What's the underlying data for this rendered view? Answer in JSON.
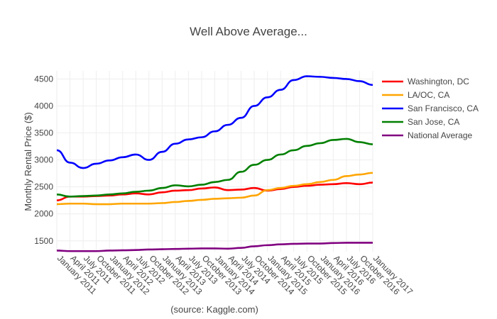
{
  "chart_data": {
    "type": "line",
    "title": "Well Above Average...",
    "ylabel": "Monthly Rental Price ($)",
    "xlabel": "(source: Kaggle.com)",
    "ylim": [
      1300,
      4650
    ],
    "y_ticks": [
      1500,
      2000,
      2500,
      3000,
      3500,
      4000,
      4500
    ],
    "x_tick_labels": [
      "January 2011",
      "April 2011",
      "July 2011",
      "October 2011",
      "January 2012",
      "April 2012",
      "July 2012",
      "October 2012",
      "January 2013",
      "April 2013",
      "July 2013",
      "October 2013",
      "January 2014",
      "April 2014",
      "July 2014",
      "October 2014",
      "January 2015",
      "April 2015",
      "July 2015",
      "October 2015",
      "January 2016",
      "April 2016",
      "July 2016",
      "October 2016",
      "January 2017"
    ],
    "x": [
      "Jan 2011",
      "Apr 2011",
      "Jul 2011",
      "Oct 2011",
      "Jan 2012",
      "Apr 2012",
      "Jul 2012",
      "Oct 2012",
      "Jan 2013",
      "Apr 2013",
      "Jul 2013",
      "Oct 2013",
      "Jan 2014",
      "Apr 2014",
      "Jul 2014",
      "Oct 2014",
      "Jan 2015",
      "Apr 2015",
      "Jul 2015",
      "Oct 2015",
      "Jan 2016",
      "Apr 2016",
      "Jul 2016",
      "Oct 2016",
      "Jan 2017"
    ],
    "grid": true,
    "legend_position": "right",
    "series": [
      {
        "name": "Washington, DC",
        "color": "#ff0000",
        "values": [
          2250,
          2320,
          2320,
          2330,
          2340,
          2360,
          2380,
          2360,
          2400,
          2430,
          2440,
          2470,
          2490,
          2440,
          2450,
          2480,
          2430,
          2460,
          2500,
          2520,
          2540,
          2550,
          2570,
          2550,
          2580
        ]
      },
      {
        "name": "LA/OC, CA",
        "color": "#ffa500",
        "values": [
          2180,
          2190,
          2190,
          2180,
          2180,
          2190,
          2190,
          2190,
          2200,
          2220,
          2240,
          2260,
          2280,
          2290,
          2300,
          2340,
          2440,
          2480,
          2520,
          2550,
          2590,
          2630,
          2700,
          2730,
          2760
        ]
      },
      {
        "name": "San Francisco, CA",
        "color": "#0000ff",
        "values": [
          3180,
          2950,
          2850,
          2930,
          2990,
          3050,
          3100,
          3000,
          3150,
          3300,
          3380,
          3420,
          3530,
          3650,
          3780,
          4000,
          4160,
          4300,
          4480,
          4550,
          4540,
          4520,
          4500,
          4460,
          4390
        ]
      },
      {
        "name": "San Jose, CA",
        "color": "#008000",
        "values": [
          2360,
          2320,
          2330,
          2340,
          2360,
          2380,
          2410,
          2430,
          2480,
          2530,
          2510,
          2540,
          2590,
          2630,
          2780,
          2910,
          3000,
          3100,
          3180,
          3260,
          3310,
          3370,
          3390,
          3330,
          3290
        ]
      },
      {
        "name": "National Average",
        "color": "#800080",
        "values": [
          1320,
          1310,
          1310,
          1310,
          1320,
          1325,
          1330,
          1340,
          1345,
          1350,
          1355,
          1360,
          1360,
          1355,
          1370,
          1400,
          1420,
          1435,
          1445,
          1450,
          1450,
          1460,
          1465,
          1465,
          1465
        ]
      }
    ]
  }
}
